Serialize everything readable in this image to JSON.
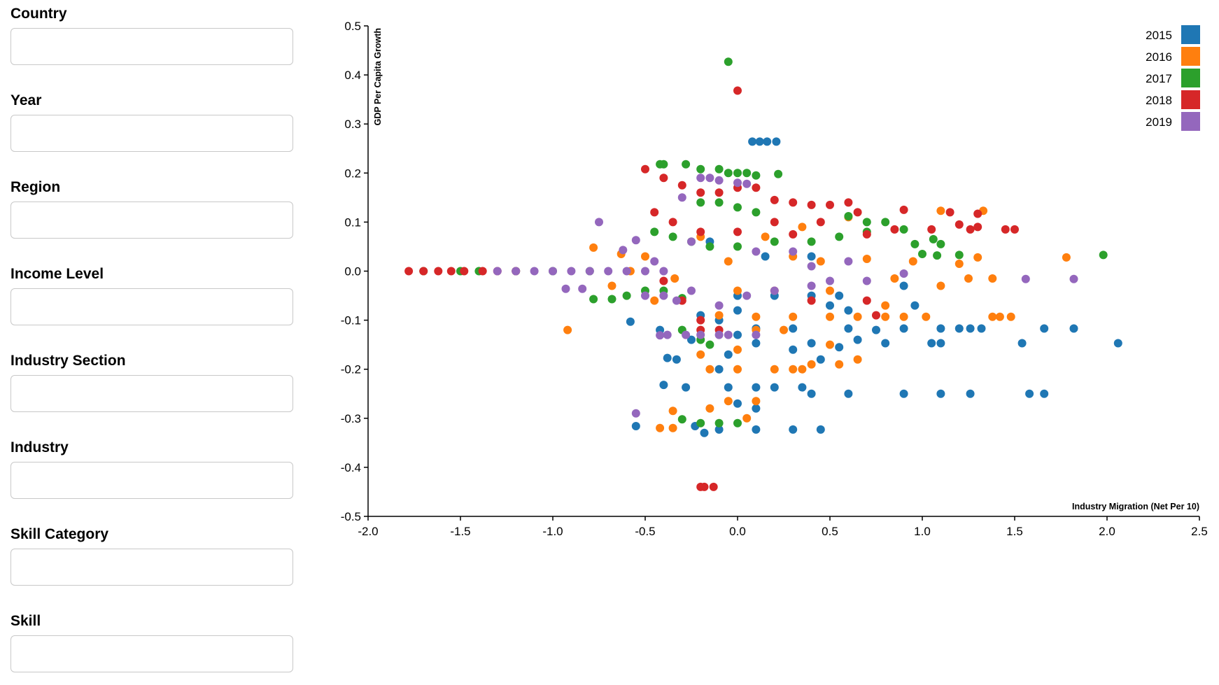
{
  "filters": [
    {
      "id": "country",
      "label": "Country",
      "value": "",
      "placeholder": ""
    },
    {
      "id": "year",
      "label": "Year",
      "value": "",
      "placeholder": ""
    },
    {
      "id": "region",
      "label": "Region",
      "value": "",
      "placeholder": ""
    },
    {
      "id": "income-level",
      "label": "Income Level",
      "value": "",
      "placeholder": ""
    },
    {
      "id": "industry-section",
      "label": "Industry Section",
      "value": "",
      "placeholder": ""
    },
    {
      "id": "industry",
      "label": "Industry",
      "value": "",
      "placeholder": ""
    },
    {
      "id": "skill-category",
      "label": "Skill Category",
      "value": "",
      "placeholder": ""
    },
    {
      "id": "skill",
      "label": "Skill",
      "value": "",
      "placeholder": ""
    }
  ],
  "chart_data": {
    "type": "scatter",
    "xlabel": "Industry Migration (Net Per 10)",
    "ylabel": "GDP Per Capita Growth",
    "xlim": [
      -2.0,
      2.5
    ],
    "ylim": [
      -0.5,
      0.5
    ],
    "xticks": [
      "-2.0",
      "-1.5",
      "-1.0",
      "-0.5",
      "0.0",
      "0.5",
      "1.0",
      "1.5",
      "2.0",
      "2.5"
    ],
    "yticks": [
      "0.5",
      "0.4",
      "0.3",
      "0.2",
      "0.1",
      "0.0",
      "-0.1",
      "-0.2",
      "-0.3",
      "-0.4",
      "-0.5"
    ],
    "grid": false,
    "legend_position": "top-right",
    "series": [
      {
        "name": "2015",
        "color": "#1f77b4",
        "points": [
          [
            0.08,
            0.264
          ],
          [
            0.12,
            0.264
          ],
          [
            0.16,
            0.264
          ],
          [
            0.21,
            0.264
          ],
          [
            0.1,
            -0.117
          ],
          [
            0.3,
            -0.117
          ],
          [
            0.6,
            -0.117
          ],
          [
            0.9,
            -0.117
          ],
          [
            1.1,
            -0.117
          ],
          [
            1.2,
            -0.117
          ],
          [
            1.26,
            -0.117
          ],
          [
            1.32,
            -0.117
          ],
          [
            1.82,
            -0.117
          ],
          [
            1.66,
            -0.117
          ],
          [
            0.1,
            -0.147
          ],
          [
            0.4,
            -0.147
          ],
          [
            0.8,
            -0.147
          ],
          [
            1.05,
            -0.147
          ],
          [
            1.1,
            -0.147
          ],
          [
            1.54,
            -0.147
          ],
          [
            2.06,
            -0.147
          ],
          [
            -0.05,
            -0.237
          ],
          [
            0.1,
            -0.237
          ],
          [
            0.2,
            -0.237
          ],
          [
            0.35,
            -0.237
          ],
          [
            0.4,
            -0.25
          ],
          [
            0.6,
            -0.25
          ],
          [
            0.9,
            -0.25
          ],
          [
            1.1,
            -0.25
          ],
          [
            1.26,
            -0.25
          ],
          [
            1.58,
            -0.25
          ],
          [
            1.66,
            -0.25
          ],
          [
            -0.1,
            -0.323
          ],
          [
            0.1,
            -0.323
          ],
          [
            0.3,
            -0.323
          ],
          [
            0.45,
            -0.323
          ],
          [
            -0.23,
            -0.316
          ],
          [
            -0.55,
            -0.316
          ],
          [
            -0.18,
            -0.33
          ],
          [
            -0.4,
            -0.232
          ],
          [
            -0.28,
            -0.237
          ],
          [
            -0.38,
            -0.177
          ],
          [
            -0.33,
            -0.18
          ],
          [
            0.0,
            -0.05
          ],
          [
            0.2,
            -0.05
          ],
          [
            0.4,
            -0.05
          ],
          [
            0.55,
            -0.05
          ],
          [
            0.5,
            -0.07
          ],
          [
            0.6,
            -0.08
          ],
          [
            -0.2,
            -0.09
          ],
          [
            -0.1,
            -0.1
          ],
          [
            0.0,
            -0.08
          ],
          [
            -0.58,
            -0.103
          ],
          [
            -0.42,
            -0.12
          ],
          [
            -0.25,
            -0.14
          ],
          [
            0.9,
            -0.03
          ],
          [
            0.96,
            -0.07
          ],
          [
            0.0,
            -0.13
          ],
          [
            0.3,
            -0.16
          ],
          [
            0.55,
            -0.155
          ],
          [
            0.15,
            0.03
          ],
          [
            -0.15,
            0.06
          ],
          [
            0.4,
            0.03
          ],
          [
            0.65,
            -0.14
          ],
          [
            0.75,
            -0.12
          ],
          [
            -0.05,
            -0.17
          ],
          [
            -0.1,
            -0.2
          ],
          [
            0.45,
            -0.18
          ],
          [
            0.0,
            -0.27
          ],
          [
            0.1,
            -0.28
          ]
        ]
      },
      {
        "name": "2016",
        "color": "#ff7f0e",
        "points": [
          [
            1.78,
            0.028
          ],
          [
            1.33,
            0.123
          ],
          [
            1.1,
            0.123
          ],
          [
            1.3,
            0.028
          ],
          [
            1.42,
            -0.093
          ],
          [
            1.48,
            -0.093
          ],
          [
            1.38,
            -0.093
          ],
          [
            1.2,
            0.015
          ],
          [
            1.25,
            -0.015
          ],
          [
            1.38,
            -0.015
          ],
          [
            1.02,
            -0.093
          ],
          [
            0.9,
            -0.093
          ],
          [
            0.8,
            -0.093
          ],
          [
            0.65,
            -0.093
          ],
          [
            0.5,
            -0.093
          ],
          [
            0.3,
            -0.093
          ],
          [
            0.1,
            -0.093
          ],
          [
            -0.92,
            -0.12
          ],
          [
            -0.78,
            0.048
          ],
          [
            -0.68,
            -0.03
          ],
          [
            -0.63,
            0.035
          ],
          [
            -0.58,
            0.0
          ],
          [
            -0.5,
            0.03
          ],
          [
            -0.45,
            -0.06
          ],
          [
            -0.34,
            -0.015
          ],
          [
            0.0,
            -0.04
          ],
          [
            0.2,
            -0.04
          ],
          [
            0.5,
            -0.04
          ],
          [
            0.85,
            -0.015
          ],
          [
            1.1,
            -0.03
          ],
          [
            0.95,
            0.02
          ],
          [
            0.7,
            0.025
          ],
          [
            0.3,
            0.03
          ],
          [
            0.15,
            0.07
          ],
          [
            -0.2,
            0.07
          ],
          [
            0.35,
            0.09
          ],
          [
            0.6,
            0.11
          ],
          [
            -0.15,
            -0.2
          ],
          [
            0.0,
            -0.2
          ],
          [
            0.2,
            -0.2
          ],
          [
            0.35,
            -0.2
          ],
          [
            0.4,
            -0.19
          ],
          [
            0.55,
            -0.19
          ],
          [
            0.65,
            -0.18
          ],
          [
            -0.15,
            -0.28
          ],
          [
            -0.05,
            -0.265
          ],
          [
            0.1,
            -0.265
          ],
          [
            -0.35,
            -0.285
          ],
          [
            -0.42,
            -0.32
          ],
          [
            -0.35,
            -0.32
          ],
          [
            0.05,
            -0.3
          ],
          [
            -0.2,
            -0.17
          ],
          [
            0.3,
            -0.2
          ],
          [
            0.8,
            -0.07
          ],
          [
            0.45,
            0.02
          ],
          [
            -0.05,
            0.02
          ],
          [
            0.1,
            -0.12
          ],
          [
            -0.1,
            -0.09
          ],
          [
            0.25,
            -0.12
          ],
          [
            0.5,
            -0.15
          ],
          [
            0.0,
            -0.16
          ]
        ]
      },
      {
        "name": "2017",
        "color": "#2ca02c",
        "points": [
          [
            -0.05,
            0.427
          ],
          [
            -0.42,
            0.218
          ],
          [
            -0.4,
            0.218
          ],
          [
            -0.28,
            0.218
          ],
          [
            -0.2,
            0.208
          ],
          [
            -0.1,
            0.208
          ],
          [
            -0.05,
            0.2
          ],
          [
            0.0,
            0.2
          ],
          [
            0.05,
            0.2
          ],
          [
            0.1,
            0.195
          ],
          [
            0.22,
            0.198
          ],
          [
            0.6,
            0.112
          ],
          [
            0.7,
            0.1
          ],
          [
            0.8,
            0.1
          ],
          [
            0.9,
            0.085
          ],
          [
            0.96,
            0.055
          ],
          [
            1.06,
            0.065
          ],
          [
            1.1,
            0.055
          ],
          [
            1.0,
            0.035
          ],
          [
            1.08,
            0.032
          ],
          [
            1.2,
            0.033
          ],
          [
            1.98,
            0.033
          ],
          [
            -1.7,
            0.0
          ],
          [
            -1.5,
            0.0
          ],
          [
            -1.4,
            0.0
          ],
          [
            -1.2,
            0.0
          ],
          [
            -1.0,
            0.0
          ],
          [
            -0.8,
            0.0
          ],
          [
            -0.68,
            -0.057
          ],
          [
            -0.78,
            -0.057
          ],
          [
            -0.6,
            -0.05
          ],
          [
            -0.5,
            -0.04
          ],
          [
            -0.4,
            -0.04
          ],
          [
            -0.3,
            -0.055
          ],
          [
            -0.45,
            0.08
          ],
          [
            -0.35,
            0.07
          ],
          [
            -0.25,
            0.06
          ],
          [
            -0.15,
            0.05
          ],
          [
            0.0,
            0.05
          ],
          [
            0.2,
            0.06
          ],
          [
            0.4,
            0.06
          ],
          [
            0.55,
            0.07
          ],
          [
            0.7,
            0.08
          ],
          [
            -0.3,
            -0.302
          ],
          [
            -0.2,
            -0.31
          ],
          [
            -0.1,
            -0.31
          ],
          [
            0.0,
            -0.31
          ],
          [
            -0.2,
            -0.14
          ],
          [
            -0.15,
            -0.15
          ],
          [
            -0.3,
            -0.12
          ],
          [
            -0.2,
            0.14
          ],
          [
            -0.1,
            0.14
          ],
          [
            0.0,
            0.13
          ],
          [
            0.1,
            0.12
          ]
        ]
      },
      {
        "name": "2018",
        "color": "#d62728",
        "points": [
          [
            0.0,
            0.368
          ],
          [
            -1.78,
            0.0
          ],
          [
            -1.7,
            0.0
          ],
          [
            -1.62,
            0.0
          ],
          [
            -1.55,
            0.0
          ],
          [
            -1.48,
            0.0
          ],
          [
            -1.38,
            0.0
          ],
          [
            -1.3,
            0.0
          ],
          [
            -1.2,
            0.0
          ],
          [
            -0.2,
            -0.44
          ],
          [
            -0.18,
            -0.44
          ],
          [
            -0.13,
            -0.44
          ],
          [
            -0.5,
            0.208
          ],
          [
            -0.4,
            0.19
          ],
          [
            -0.3,
            0.175
          ],
          [
            -0.2,
            0.16
          ],
          [
            -0.1,
            0.16
          ],
          [
            0.0,
            0.17
          ],
          [
            0.1,
            0.17
          ],
          [
            0.2,
            0.145
          ],
          [
            0.3,
            0.14
          ],
          [
            0.4,
            0.135
          ],
          [
            0.5,
            0.135
          ],
          [
            0.6,
            0.14
          ],
          [
            0.65,
            0.12
          ],
          [
            0.9,
            0.125
          ],
          [
            1.15,
            0.12
          ],
          [
            1.3,
            0.117
          ],
          [
            1.26,
            0.085
          ],
          [
            1.2,
            0.095
          ],
          [
            1.3,
            0.09
          ],
          [
            1.45,
            0.085
          ],
          [
            1.5,
            0.085
          ],
          [
            1.05,
            0.085
          ],
          [
            0.85,
            0.085
          ],
          [
            0.7,
            0.075
          ],
          [
            -0.45,
            0.12
          ],
          [
            -0.35,
            0.1
          ],
          [
            -0.2,
            0.08
          ],
          [
            0.0,
            0.08
          ],
          [
            0.2,
            0.1
          ],
          [
            0.45,
            0.1
          ],
          [
            0.3,
            0.075
          ],
          [
            -0.2,
            -0.1
          ],
          [
            -0.3,
            -0.06
          ],
          [
            0.4,
            -0.06
          ],
          [
            0.7,
            -0.06
          ],
          [
            0.75,
            -0.09
          ],
          [
            -0.1,
            -0.12
          ],
          [
            -0.2,
            -0.12
          ],
          [
            -0.4,
            -0.02
          ]
        ]
      },
      {
        "name": "2019",
        "color": "#9467bd",
        "points": [
          [
            -0.75,
            0.1
          ],
          [
            -0.55,
            0.063
          ],
          [
            -0.62,
            0.043
          ],
          [
            1.82,
            -0.016
          ],
          [
            1.56,
            -0.016
          ],
          [
            0.9,
            -0.005
          ],
          [
            0.6,
            0.02
          ],
          [
            0.4,
            0.01
          ],
          [
            -1.3,
            0.0
          ],
          [
            -1.2,
            0.0
          ],
          [
            -1.1,
            0.0
          ],
          [
            -1.0,
            0.0
          ],
          [
            -0.9,
            0.0
          ],
          [
            -0.8,
            0.0
          ],
          [
            -0.7,
            0.0
          ],
          [
            -0.6,
            0.0
          ],
          [
            -0.5,
            0.0
          ],
          [
            -0.4,
            0.0
          ],
          [
            -0.93,
            -0.036
          ],
          [
            -0.84,
            -0.036
          ],
          [
            -0.5,
            -0.05
          ],
          [
            -0.4,
            -0.05
          ],
          [
            -0.33,
            -0.06
          ],
          [
            -0.25,
            -0.04
          ],
          [
            -0.1,
            -0.07
          ],
          [
            0.05,
            -0.05
          ],
          [
            0.2,
            -0.04
          ],
          [
            0.4,
            -0.03
          ],
          [
            0.5,
            -0.02
          ],
          [
            0.7,
            -0.02
          ],
          [
            -0.55,
            -0.29
          ],
          [
            -0.42,
            -0.131
          ],
          [
            -0.38,
            -0.13
          ],
          [
            -0.28,
            -0.13
          ],
          [
            -0.2,
            -0.13
          ],
          [
            -0.1,
            -0.13
          ],
          [
            -0.05,
            -0.13
          ],
          [
            0.1,
            -0.13
          ],
          [
            -0.2,
            0.19
          ],
          [
            -0.15,
            0.19
          ],
          [
            -0.1,
            0.185
          ],
          [
            0.0,
            0.18
          ],
          [
            0.05,
            0.178
          ],
          [
            -0.3,
            0.15
          ],
          [
            -0.25,
            0.06
          ],
          [
            0.1,
            0.04
          ],
          [
            -0.45,
            0.02
          ],
          [
            0.3,
            0.04
          ]
        ]
      }
    ]
  }
}
